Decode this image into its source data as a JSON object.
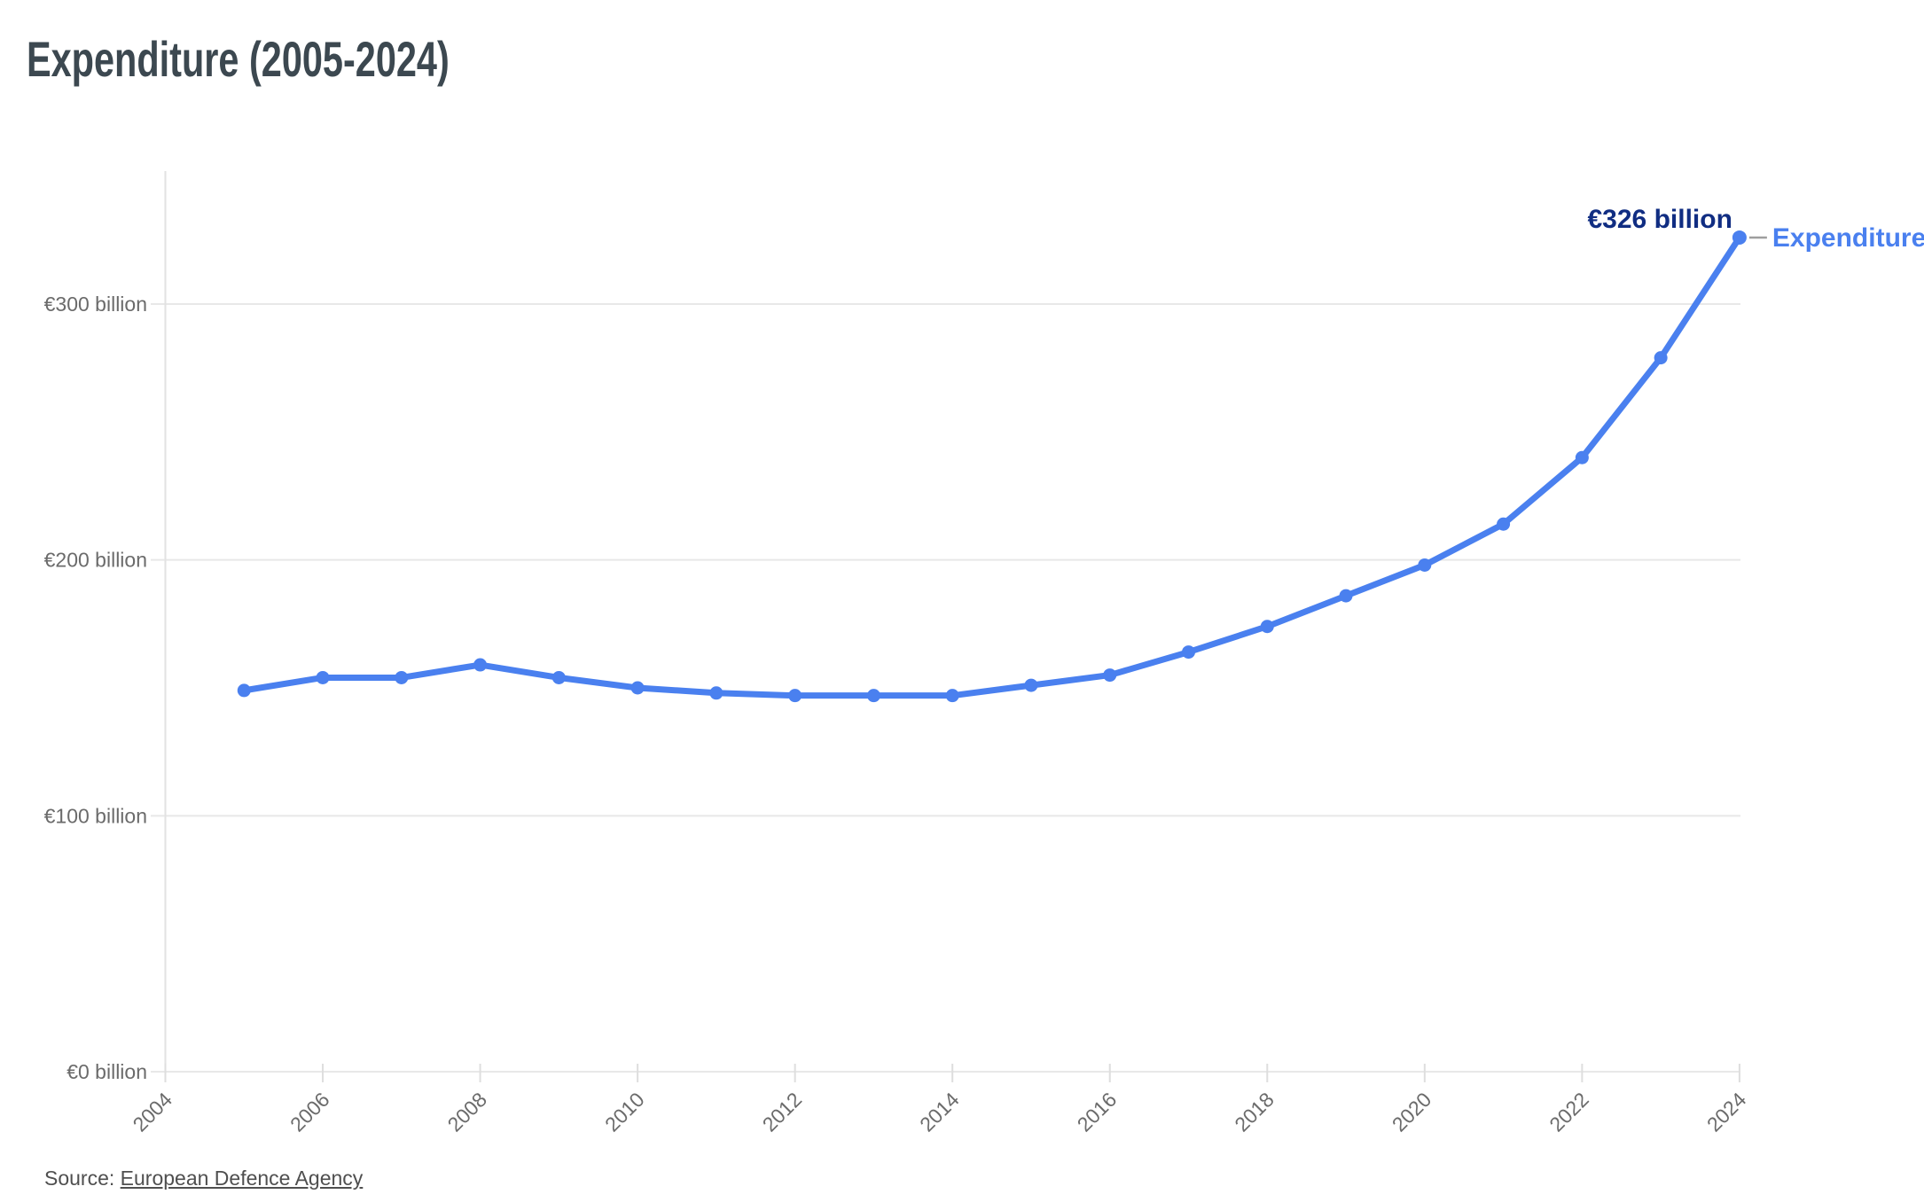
{
  "header": {
    "title": "Expenditure (2005-2024)"
  },
  "footer": {
    "source_prefix": "Source: ",
    "source_link_text": "European Defence Agency"
  },
  "annotations": {
    "end_value_label": "€326 billion",
    "series_label": "Expenditure"
  },
  "colors": {
    "background": "#ffffff",
    "title_text": "#3c4850",
    "line": "#4a80ef",
    "marker": "#4a80ef",
    "value_label_text": "#102d82",
    "series_label_text": "#4a80ef",
    "grid_line": "#e8e8e8",
    "axis_line": "#e2e2e2",
    "tick_text": "#6b6b6b",
    "source_text": "#4f4f4f"
  },
  "chart_data": {
    "type": "line",
    "title": "Expenditure (2005-2024)",
    "unit": "€ billion",
    "series": [
      {
        "name": "Expenditure",
        "x": [
          2005,
          2006,
          2007,
          2008,
          2009,
          2010,
          2011,
          2012,
          2013,
          2014,
          2015,
          2016,
          2017,
          2018,
          2019,
          2020,
          2021,
          2022,
          2023,
          2024
        ],
        "values": [
          149,
          154,
          154,
          159,
          154,
          150,
          148,
          147,
          147,
          147,
          151,
          155,
          164,
          174,
          186,
          198,
          214,
          240,
          279,
          326
        ]
      }
    ],
    "end_point_label": {
      "x": 2024,
      "value": 326,
      "text": "€326 billion"
    },
    "yticks": [
      {
        "value": 0,
        "label": "€0 billion"
      },
      {
        "value": 100,
        "label": "€100 billion"
      },
      {
        "value": 200,
        "label": "€200 billion"
      },
      {
        "value": 300,
        "label": "€300 billion"
      }
    ],
    "xticks": [
      2004,
      2006,
      2008,
      2010,
      2012,
      2014,
      2016,
      2018,
      2020,
      2022,
      2024
    ],
    "xlim": [
      2004,
      2024
    ],
    "ylim": [
      0,
      352
    ],
    "grid": true,
    "markers": true,
    "legend_position": "line-end"
  }
}
